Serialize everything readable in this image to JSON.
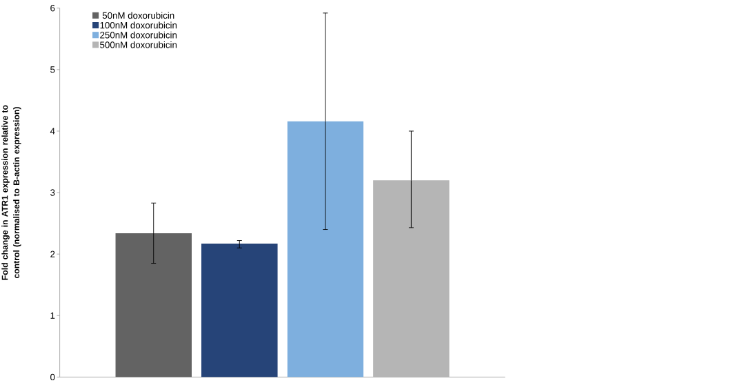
{
  "chart_data": {
    "type": "bar",
    "ylabel": "Fold change in ATR1 expression relative to control (normalised to B-actin expression)",
    "categories": [
      null
    ],
    "series": [
      {
        "name": "50nM doxorubicin",
        "color": "#636363",
        "values": [
          2.34
        ],
        "errors": [
          [
            1.85,
            2.83
          ]
        ]
      },
      {
        "name": "100nM doxorubicin",
        "color": "#264478",
        "values": [
          2.17
        ],
        "errors": [
          [
            2.1,
            2.22
          ]
        ]
      },
      {
        "name": "250nM doxorubicin",
        "color": "#7eafde",
        "values": [
          4.16
        ],
        "errors": [
          [
            2.4,
            5.92
          ]
        ]
      },
      {
        "name": "500nM doxorubicin",
        "color": "#b5b5b5",
        "values": [
          3.2
        ],
        "errors": [
          [
            2.43,
            4.0
          ]
        ]
      }
    ],
    "ylim": [
      0,
      6
    ],
    "yticks": [
      0,
      1,
      2,
      3,
      4,
      5,
      6
    ],
    "legend": "top left",
    "grid": false
  }
}
